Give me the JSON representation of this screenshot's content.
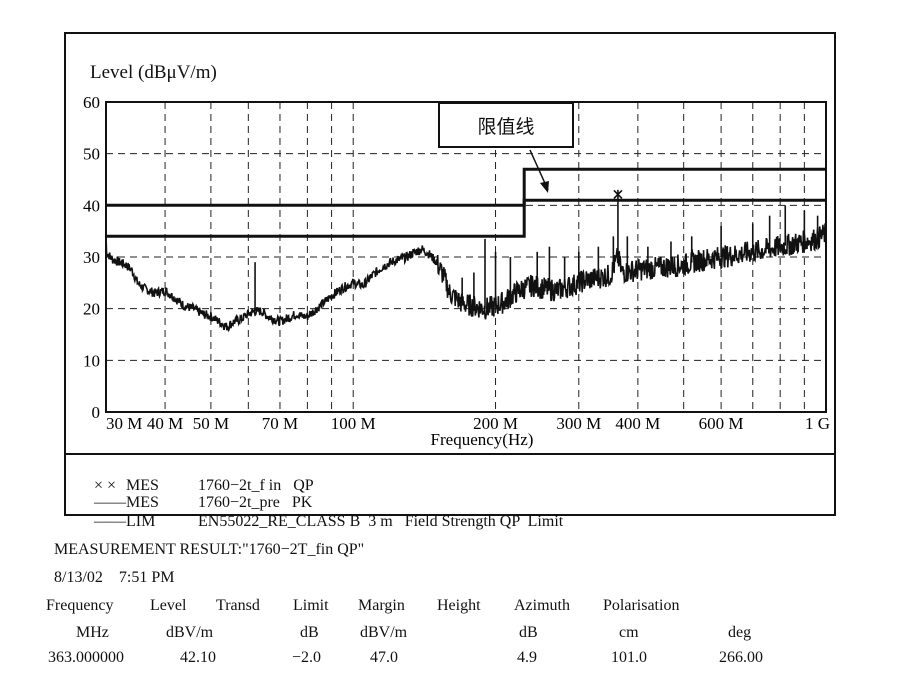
{
  "chart_data": {
    "type": "line",
    "ylabel": "Level (dBμV/m)",
    "xlabel": "Frequency(Hz)",
    "x_scale": "log",
    "xlim": [
      30,
      1000
    ],
    "ylim": [
      0,
      60
    ],
    "grid": true,
    "y_ticks": [
      0,
      10,
      20,
      30,
      40,
      50,
      60
    ],
    "x_ticks": [
      {
        "value": 30,
        "label": "30 M"
      },
      {
        "value": 40,
        "label": "40 M"
      },
      {
        "value": 50,
        "label": "50 M"
      },
      {
        "value": 70,
        "label": "70 M"
      },
      {
        "value": 100,
        "label": "100 M"
      },
      {
        "value": 200,
        "label": "200 M"
      },
      {
        "value": 300,
        "label": "300 M"
      },
      {
        "value": 400,
        "label": "400 M"
      },
      {
        "value": 600,
        "label": "600 M"
      },
      {
        "value": 1000,
        "label": "1 G"
      }
    ],
    "minor_x": [
      60,
      80,
      90,
      500,
      700,
      800,
      900
    ],
    "annotation": "限值线",
    "series": [
      {
        "name": "MES 1760−2t_pre PK",
        "x": [
          30,
          31,
          32,
          33,
          34,
          35,
          36,
          37,
          38,
          40,
          42,
          44,
          46,
          48,
          50,
          52,
          54,
          56,
          58,
          60,
          62,
          64,
          66,
          68,
          70,
          72,
          74,
          76,
          78,
          80,
          85,
          90,
          95,
          100,
          105,
          110,
          115,
          120,
          125,
          130,
          135,
          140,
          145,
          150,
          155,
          160,
          170,
          180,
          190,
          200,
          210,
          220,
          230,
          240,
          250,
          270,
          290,
          310,
          330,
          350,
          363,
          370,
          400,
          450,
          500,
          550,
          600,
          650,
          700,
          750,
          800,
          850,
          900,
          950,
          1000
        ],
        "y": [
          31,
          29.5,
          29,
          28.5,
          27.5,
          25,
          24,
          23.5,
          23,
          23.5,
          22,
          20.5,
          20,
          19,
          18.5,
          17.5,
          16.5,
          17.5,
          18,
          19,
          19.5,
          19.5,
          18.5,
          18,
          17.5,
          18,
          18.5,
          19,
          18.5,
          18.5,
          20.5,
          22.5,
          24,
          25,
          24.5,
          26.5,
          28,
          29,
          29.5,
          30,
          31,
          31.5,
          30.5,
          29,
          26.5,
          23,
          21,
          20.5,
          20,
          20.5,
          21.5,
          23,
          24,
          24.5,
          24,
          23.5,
          24.5,
          25.5,
          26,
          26.5,
          30,
          27,
          27.5,
          28,
          28.5,
          29.5,
          30,
          30.5,
          31,
          31.5,
          32,
          32.5,
          33,
          33.5,
          34.5
        ]
      },
      {
        "name": "MES 1760−2t_f in QP",
        "x": [
          363
        ],
        "y": [
          42.1
        ]
      },
      {
        "name": "LIM EN55022_RE_CLASS B 3 m Field Strength QP Limit",
        "x": [
          30,
          230,
          230,
          1000
        ],
        "y": [
          40,
          40,
          47,
          47
        ]
      },
      {
        "x": [
          30,
          230,
          230,
          1000
        ],
        "y": [
          34,
          34,
          41,
          41
        ]
      }
    ],
    "spikes": [
      {
        "x": 62,
        "y": 29
      },
      {
        "x": 170,
        "y": 26
      },
      {
        "x": 180,
        "y": 27
      },
      {
        "x": 190,
        "y": 33.5
      },
      {
        "x": 200,
        "y": 31
      },
      {
        "x": 215,
        "y": 30
      },
      {
        "x": 245,
        "y": 31
      },
      {
        "x": 260,
        "y": 32
      },
      {
        "x": 280,
        "y": 30
      },
      {
        "x": 300,
        "y": 31
      },
      {
        "x": 330,
        "y": 32
      },
      {
        "x": 355,
        "y": 34
      },
      {
        "x": 363,
        "y": 43
      },
      {
        "x": 380,
        "y": 34
      },
      {
        "x": 420,
        "y": 32
      },
      {
        "x": 470,
        "y": 33
      },
      {
        "x": 520,
        "y": 34
      },
      {
        "x": 600,
        "y": 36
      },
      {
        "x": 700,
        "y": 36.5
      },
      {
        "x": 760,
        "y": 38
      },
      {
        "x": 820,
        "y": 40
      },
      {
        "x": 900,
        "y": 39
      },
      {
        "x": 960,
        "y": 38
      }
    ]
  },
  "legend": [
    {
      "symbol": "× ×",
      "key": "MES",
      "text": "1760−2t_f in   QP"
    },
    {
      "symbol": "——",
      "key": "MES",
      "text": "1760−2t_pre   PK"
    },
    {
      "symbol": "——",
      "key": "LIM",
      "text": "EN55022_RE_CLASS B  3 m   Field Strength QP  Limit"
    }
  ],
  "measurement": {
    "title": "MEASUREMENT RESULT:\"1760−2T_fin QP\"",
    "date": "8/13/02",
    "time": "7:51 PM",
    "headers": [
      "Frequency",
      "Level",
      "Transd",
      "Limit",
      "Margin",
      "Height",
      "Azimuth",
      "Polarisation"
    ],
    "units": [
      "MHz",
      "dBV/m",
      "dB",
      "dBV/m",
      "dB",
      "cm",
      "deg"
    ],
    "row": [
      "363.000000",
      "42.10",
      "−2.0",
      "47.0",
      "4.9",
      "101.0",
      "266.00"
    ]
  }
}
